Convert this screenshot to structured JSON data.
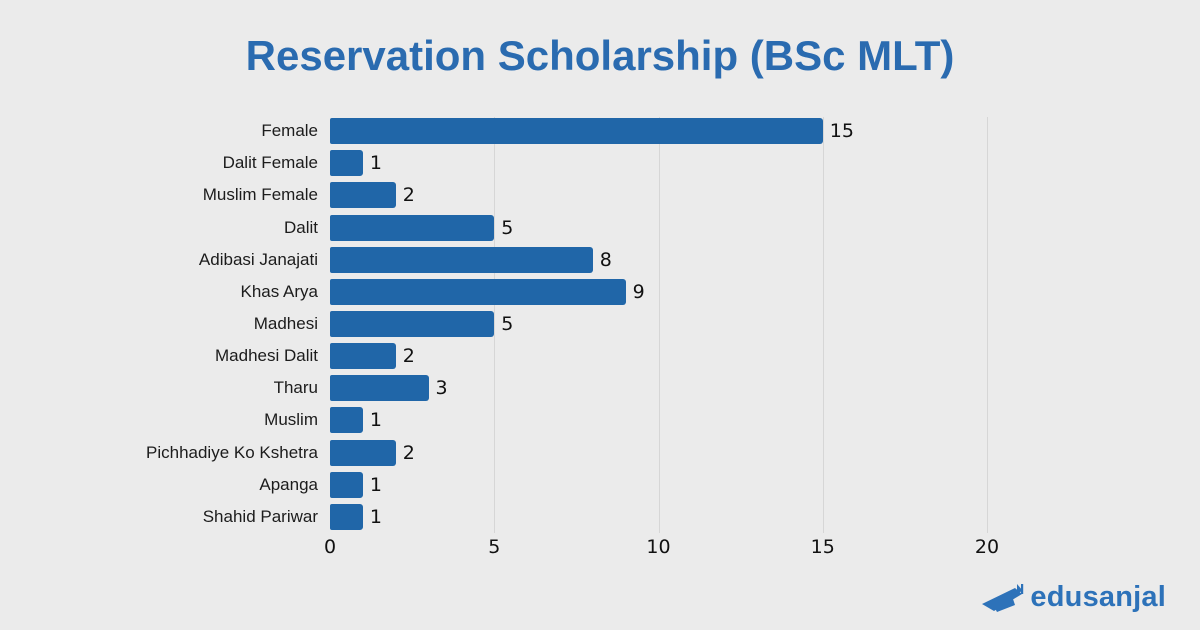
{
  "title": "Reservation Scholarship (BSc MLT)",
  "colors": {
    "background": "#ebebeb",
    "bar": "#2066a8",
    "title": "#2a6bb0",
    "logo": "#2d72b9",
    "gridline": "#d6d6d6",
    "label_text": "#1c1c1c"
  },
  "chart_data": {
    "type": "bar",
    "orientation": "horizontal",
    "title": "Reservation Scholarship (BSc MLT)",
    "categories": [
      "Female",
      "Dalit Female",
      "Muslim Female",
      "Dalit",
      "Adibasi Janajati",
      "Khas Arya",
      "Madhesi",
      "Madhesi Dalit",
      "Tharu",
      "Muslim",
      "Pichhadiye Ko Kshetra",
      "Apanga",
      "Shahid Pariwar"
    ],
    "values": [
      15,
      1,
      2,
      5,
      8,
      9,
      5,
      2,
      3,
      1,
      2,
      1,
      1
    ],
    "value_labels_shown": true,
    "xlabel": "",
    "ylabel": "",
    "xlim": [
      0,
      20
    ],
    "xticks": [
      0,
      5,
      10,
      15,
      20
    ],
    "grid": "vertical",
    "legend": "none",
    "bar_color": "#2066a8"
  },
  "branding": {
    "logo_text": "edusanjal"
  }
}
